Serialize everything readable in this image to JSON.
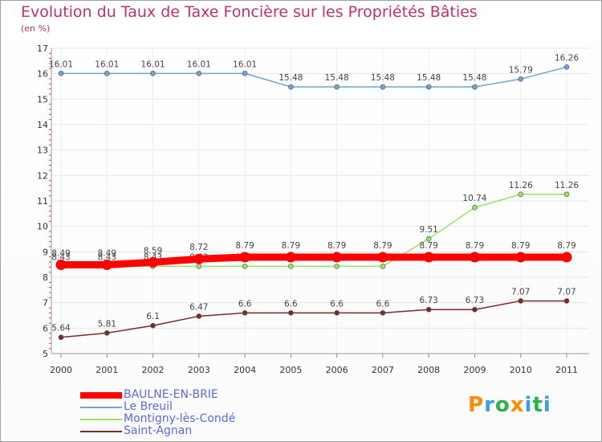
{
  "chart_data": {
    "type": "line",
    "title": "Evolution du Taux de Taxe Foncière sur les Propriétés Bâties",
    "ylabel": "(en %)",
    "xlabel": "",
    "x": [
      "2000",
      "2001",
      "2002",
      "2003",
      "2004",
      "2005",
      "2006",
      "2007",
      "2008",
      "2009",
      "2010",
      "2011"
    ],
    "ylim": [
      5,
      17
    ],
    "yticks": [
      "5",
      "6",
      "7",
      "8",
      "9",
      "10",
      "11",
      "12",
      "13",
      "14",
      "15",
      "16",
      "17"
    ],
    "series": [
      {
        "name": "BAULNE-EN-BRIE",
        "color": "#ff0000",
        "values": [
          8.49,
          8.49,
          8.59,
          8.72,
          8.79,
          8.79,
          8.79,
          8.79,
          8.79,
          8.79,
          8.79,
          8.79
        ],
        "labels": [
          "8.49",
          "8.49",
          "8.59",
          "8.72",
          "8.79",
          "8.79",
          "8.79",
          "8.79",
          "8.79",
          "8.79",
          "8.79",
          "8.79"
        ]
      },
      {
        "name": "Le Breuil",
        "color": "#6fa3d6",
        "values": [
          16.01,
          16.01,
          16.01,
          16.01,
          16.01,
          15.48,
          15.48,
          15.48,
          15.48,
          15.48,
          15.79,
          16.26
        ],
        "labels": [
          "16.01",
          "16.01",
          "16.01",
          "16.01",
          "16.01",
          "15.48",
          "15.48",
          "15.48",
          "15.48",
          "15.48",
          "15.79",
          "16.26"
        ]
      },
      {
        "name": "Montigny-lès-Condé",
        "color": "#99e068",
        "values": [
          8.43,
          8.43,
          8.43,
          8.43,
          8.43,
          8.43,
          8.43,
          8.43,
          9.51,
          10.74,
          11.26,
          11.26
        ],
        "labels": [
          "8.43",
          "8.43",
          "8.43",
          "8.43",
          "8.43",
          "8.43",
          "8.43",
          "8.43",
          "9.51",
          "10.74",
          "11.26",
          "11.26"
        ]
      },
      {
        "name": "Saint-Agnan",
        "color": "#7a2a2a",
        "values": [
          5.64,
          5.81,
          6.1,
          6.47,
          6.6,
          6.6,
          6.6,
          6.6,
          6.73,
          6.73,
          7.07,
          7.07
        ],
        "labels": [
          "5.64",
          "5.81",
          "6.1",
          "6.47",
          "6.6",
          "6.6",
          "6.6",
          "6.6",
          "6.73",
          "6.73",
          "7.07",
          "7.07"
        ]
      }
    ],
    "grid": true,
    "legend": "bottom-left"
  },
  "logo": {
    "letters": [
      "P",
      "r",
      "o",
      "x",
      "i",
      "t",
      "i"
    ],
    "colors": [
      "#ff8c00",
      "#3aa0e0",
      "#2bb14a",
      "#ff8c00",
      "#3aa0e0",
      "#2bb14a",
      "#3aa0e0"
    ]
  }
}
